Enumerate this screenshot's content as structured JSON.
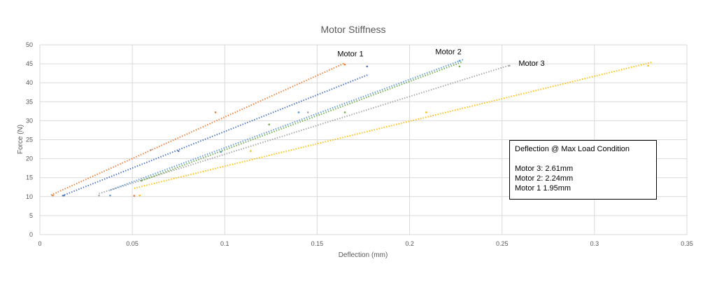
{
  "chart_data": {
    "type": "scatter",
    "title": "Motor Stiffness",
    "xlabel": "Deflection (mm)",
    "ylabel": "Force (N)",
    "xlim": [
      0,
      0.35
    ],
    "ylim": [
      0,
      50
    ],
    "xticks": [
      "0",
      "0.05",
      "0.1",
      "0.15",
      "0.2",
      "0.25",
      "0.3",
      "0.35"
    ],
    "yticks": [
      "0",
      "5",
      "10",
      "15",
      "20",
      "25",
      "30",
      "35",
      "40",
      "45",
      "50"
    ],
    "grid": true,
    "trendlines": "linear, dotted",
    "series": [
      {
        "color": "#4472c4",
        "points": [
          [
            0.013,
            10.3
          ],
          [
            0.075,
            22.0
          ],
          [
            0.177,
            44.3
          ]
        ],
        "trendline": [
          [
            0.012,
            10.2
          ],
          [
            0.178,
            42.2
          ]
        ]
      },
      {
        "color": "#ed7d31",
        "points": [
          [
            0.007,
            10.3
          ],
          [
            0.095,
            32.2
          ],
          [
            0.165,
            44.8
          ],
          [
            0.051,
            10.2
          ]
        ],
        "trendline": [
          [
            0.006,
            10.4
          ],
          [
            0.165,
            45.2
          ]
        ]
      },
      {
        "color": "#a5a5a5",
        "points": [
          [
            0.032,
            10.3
          ],
          [
            0.06,
            22.3
          ],
          [
            0.145,
            32.2
          ],
          [
            0.254,
            44.5
          ]
        ],
        "trendline": [
          [
            0.032,
            10.8
          ],
          [
            0.254,
            44.6
          ]
        ]
      },
      {
        "color": "#ffc000",
        "points": [
          [
            0.054,
            10.3
          ],
          [
            0.114,
            22.0
          ],
          [
            0.209,
            32.2
          ],
          [
            0.329,
            44.5
          ]
        ],
        "trendline": [
          [
            0.051,
            12.2
          ],
          [
            0.331,
            45.4
          ]
        ]
      },
      {
        "color": "#5b9bd5",
        "points": [
          [
            0.038,
            10.3
          ],
          [
            0.098,
            21.8
          ],
          [
            0.14,
            32.2
          ],
          [
            0.227,
            45.8
          ]
        ],
        "trendline": [
          [
            0.038,
            11.7
          ],
          [
            0.229,
            46.1
          ]
        ]
      },
      {
        "color": "#70ad47",
        "points": [
          [
            0.055,
            14.2
          ],
          [
            0.124,
            29.0
          ],
          [
            0.165,
            32.2
          ],
          [
            0.227,
            44.3
          ]
        ],
        "trendline": [
          [
            0.055,
            14.2
          ],
          [
            0.228,
            45.4
          ]
        ]
      }
    ],
    "series_labels": [
      {
        "text": "Motor 1",
        "x": 0.168,
        "y": 47.0
      },
      {
        "text": "Motor 2",
        "x": 0.221,
        "y": 47.5
      },
      {
        "text": "Motor 3",
        "x": 0.266,
        "y": 44.5
      }
    ],
    "annotation": {
      "title": "Deflection @ Max Load Condition",
      "lines": [
        "Motor 3: 2.61mm",
        "Motor 2: 2.24mm",
        "Motor 1 1.95mm"
      ]
    }
  }
}
